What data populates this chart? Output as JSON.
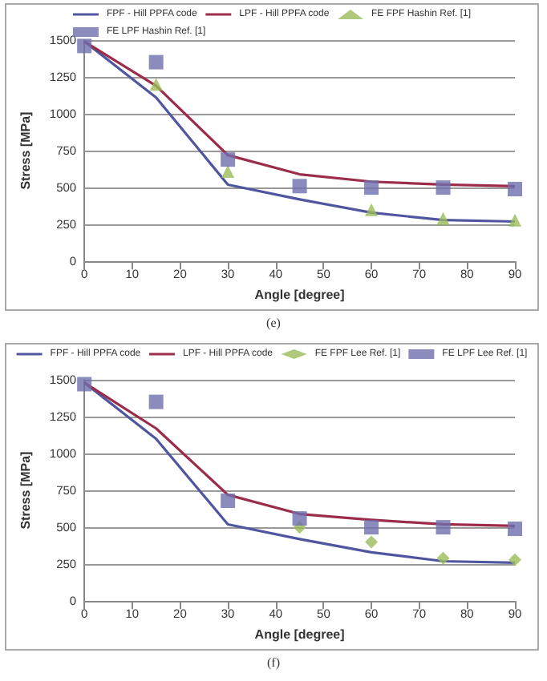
{
  "chart_data": [
    {
      "type": "line",
      "xlabel": "Angle [degree]",
      "ylabel": "Stress [MPa]",
      "annotations": [
        "(e)"
      ],
      "xlim": [
        0,
        90
      ],
      "xticks": [
        0,
        10,
        20,
        30,
        40,
        50,
        60,
        70,
        80,
        90
      ],
      "ylim": [
        0,
        1500
      ],
      "yticks": [
        0,
        250,
        500,
        750,
        1000,
        1250,
        1500
      ],
      "grid": "y",
      "legend": "top",
      "marker": "none",
      "series": [
        {
          "name": "FPF - Hill PPFA code",
          "color": "#5055a0",
          "x": [
            0,
            15,
            30,
            45,
            60,
            75,
            90
          ],
          "values": [
            1490,
            1110,
            520,
            420,
            330,
            280,
            270
          ]
        },
        {
          "name": "LPF - Hill PPFA code",
          "color": "#9b2d4a",
          "x": [
            0,
            15,
            30,
            45,
            60,
            75,
            90
          ],
          "values": [
            1490,
            1190,
            720,
            590,
            540,
            520,
            510
          ]
        },
        {
          "name": "FE FPF Hashin Ref. [1]",
          "type": "scatter",
          "marker": "triangle",
          "color": "#9bbb59",
          "x": [
            15,
            30,
            60,
            75,
            90
          ],
          "values": [
            1200,
            610,
            350,
            290,
            280
          ]
        },
        {
          "name": "FE LPF Hashin Ref. [1]",
          "type": "scatter",
          "marker": "square",
          "color": "#6e6eae",
          "x": [
            0,
            15,
            30,
            45,
            60,
            75,
            90
          ],
          "values": [
            1460,
            1350,
            690,
            510,
            500,
            500,
            490
          ]
        }
      ]
    },
    {
      "type": "line",
      "xlabel": "Angle [degree]",
      "ylabel": "Stress [MPa]",
      "annotations": [
        "(f)"
      ],
      "xlim": [
        0,
        90
      ],
      "xticks": [
        0,
        10,
        20,
        30,
        40,
        50,
        60,
        70,
        80,
        90
      ],
      "ylim": [
        0,
        1500
      ],
      "yticks": [
        0,
        250,
        500,
        750,
        1000,
        1250,
        1500
      ],
      "grid": "y",
      "legend": "top",
      "marker": "none",
      "series": [
        {
          "name": "FPF - Hill PPFA code",
          "color": "#5055a0",
          "x": [
            0,
            15,
            30,
            45,
            60,
            75,
            90
          ],
          "values": [
            1480,
            1100,
            520,
            420,
            330,
            270,
            260
          ]
        },
        {
          "name": "LPF - Hill PPFA code",
          "color": "#9b2d4a",
          "x": [
            0,
            15,
            30,
            45,
            60,
            75,
            90
          ],
          "values": [
            1480,
            1170,
            720,
            590,
            550,
            520,
            510
          ]
        },
        {
          "name": "FE FPF Lee Ref. [1]",
          "type": "scatter",
          "marker": "diamond",
          "color": "#9bbb59",
          "x": [
            45,
            60,
            75,
            90
          ],
          "values": [
            500,
            400,
            290,
            280
          ]
        },
        {
          "name": "FE LPF Lee Ref. [1]",
          "type": "scatter",
          "marker": "square",
          "color": "#6e6eae",
          "x": [
            0,
            15,
            30,
            45,
            60,
            75,
            90
          ],
          "values": [
            1470,
            1350,
            680,
            560,
            500,
            500,
            490
          ]
        }
      ]
    }
  ]
}
